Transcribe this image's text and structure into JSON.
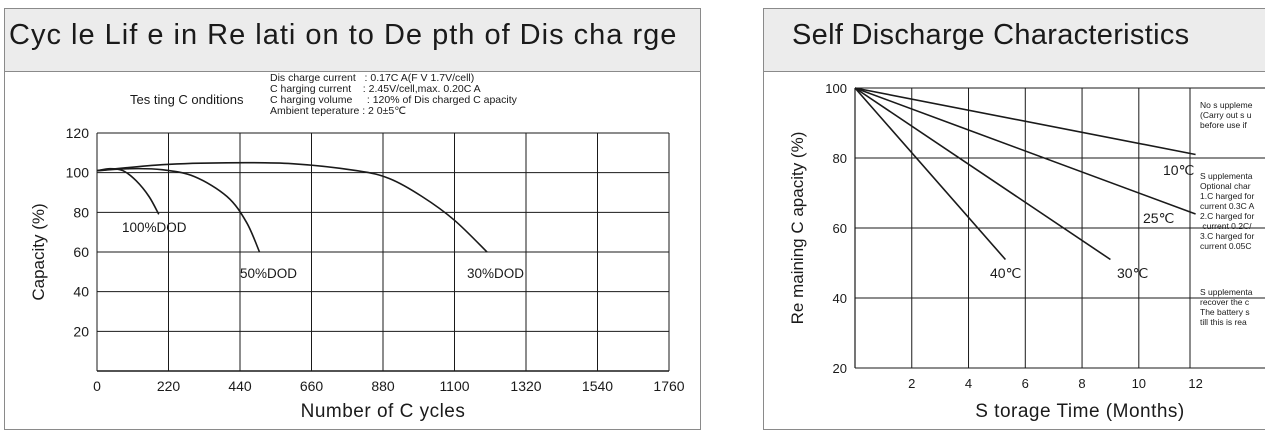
{
  "chart_data": [
    {
      "type": "line",
      "title": "Cyc le Lif e in Re lati on to De pth of Dis cha rge",
      "xlabel": "Number of C ycles",
      "ylabel": "Capacity (%)",
      "xlim": [
        0,
        1760
      ],
      "ylim": [
        0,
        120
      ],
      "x_ticks": [
        "0",
        "220",
        "440",
        "660",
        "880",
        "1100",
        "1320",
        "1540",
        "1760"
      ],
      "y_ticks": [
        "120",
        "100",
        "80",
        "60",
        "40",
        "20"
      ],
      "grid": true,
      "testing_conditions": {
        "label": "Tes ting C onditions",
        "lines": [
          "Dis charge current   : 0.17C A(F V 1.7V/cell)",
          "C harging current    : 2.45V/cell,max. 0.20C A",
          "C harging volume     : 120% of Dis charged C apacity",
          "Ambient teperature : 2 0±5℃"
        ]
      },
      "series": [
        {
          "name": "100%DOD",
          "x": [
            0,
            40,
            80,
            120,
            160,
            190
          ],
          "y": [
            101,
            102,
            101,
            96,
            88,
            79
          ]
        },
        {
          "name": "50%DOD",
          "x": [
            0,
            100,
            200,
            300,
            400,
            460,
            500
          ],
          "y": [
            101,
            102,
            101.5,
            98,
            88,
            75,
            60
          ]
        },
        {
          "name": "30%DOD",
          "x": [
            0,
            200,
            400,
            600,
            800,
            900,
            1000,
            1100,
            1200
          ],
          "y": [
            101,
            104,
            105,
            104.5,
            101,
            97,
            88,
            76,
            60
          ]
        }
      ]
    },
    {
      "type": "line",
      "title": "Self Discharge    Characteristics",
      "xlabel": "S torage Time (Months)",
      "ylabel": "Re maining C apacity (%)",
      "xlim": [
        0,
        12
      ],
      "ylim": [
        20,
        100
      ],
      "x_ticks": [
        "2",
        "4",
        "6",
        "8",
        "10",
        "12"
      ],
      "y_ticks": [
        "100",
        "80",
        "60",
        "40",
        "20"
      ],
      "grid": true,
      "series": [
        {
          "name": "10℃",
          "x": [
            0,
            12
          ],
          "y": [
            100,
            81
          ]
        },
        {
          "name": "25℃",
          "x": [
            0,
            12
          ],
          "y": [
            100,
            64
          ]
        },
        {
          "name": "30℃",
          "x": [
            0,
            9
          ],
          "y": [
            100,
            51
          ]
        },
        {
          "name": "40℃",
          "x": [
            0,
            5.3
          ],
          "y": [
            100,
            51
          ]
        }
      ],
      "notes": [
        [
          "No s uppleme",
          "(Carry out s u",
          "before use if"
        ],
        [
          "S upplementa",
          "Optional char",
          "1.C harged for",
          "current 0.3C A",
          "2.C harged for",
          " current 0.2C/",
          "3.C harged for",
          "current 0.05C"
        ],
        [
          "S upplementa",
          "recover the c",
          "The battery s",
          "till this is rea"
        ]
      ]
    }
  ]
}
